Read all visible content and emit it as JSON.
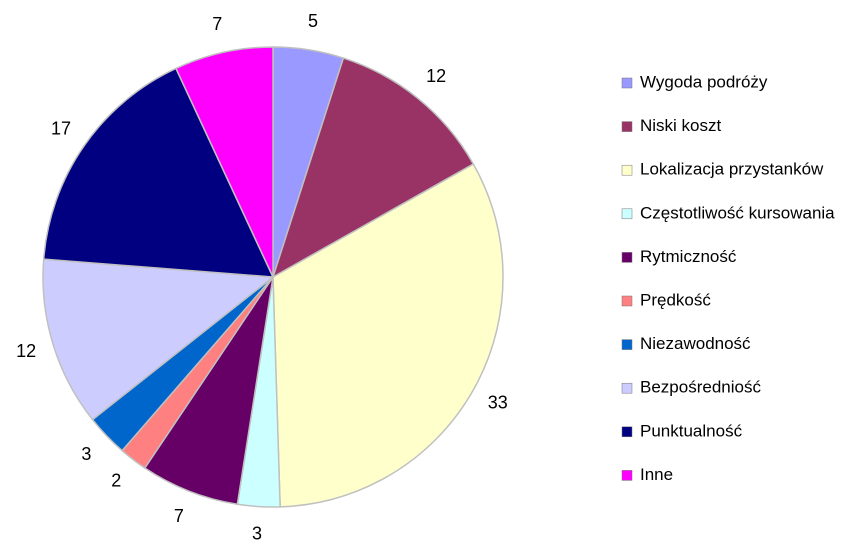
{
  "chart_data": {
    "type": "pie",
    "categories": [
      "Wygoda podróży",
      "Niski koszt",
      "Lokalizacja przystanków",
      "Częstotliwość kursowania",
      "Rytmiczność",
      "Prędkość",
      "Niezawodność",
      "Bezpośredniość",
      "Punktualność",
      "Inne"
    ],
    "values": [
      5,
      12,
      33,
      3,
      7,
      2,
      3,
      12,
      17,
      7
    ],
    "colors": [
      "#9999ff",
      "#993366",
      "#ffffcc",
      "#ccffff",
      "#660066",
      "#ff8080",
      "#0066cc",
      "#ccccff",
      "#000080",
      "#ff00ff"
    ],
    "legend": "right"
  }
}
